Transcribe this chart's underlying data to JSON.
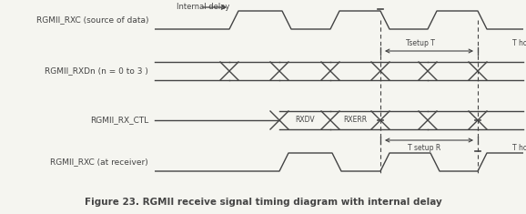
{
  "title": "Figure 23. RGMII receive signal timing diagram with internal delay",
  "signals": [
    "RGMII_RXC (source of data)",
    "RGMII_RXDn (n = 0 to 3 )",
    "RGMII_RX_CTL",
    "RGMII_RXC (at receiver)"
  ],
  "bg_color": "#f5f5f0",
  "line_color": "#444444",
  "fig_width": 5.78,
  "fig_height": 2.35,
  "dpi": 100
}
